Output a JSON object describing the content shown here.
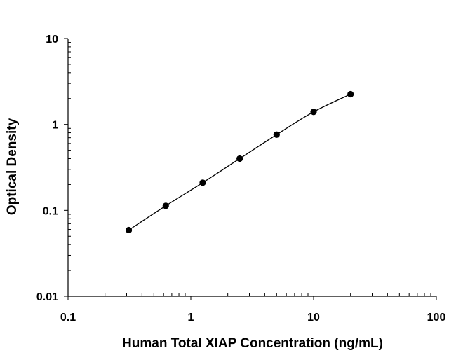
{
  "chart_data": {
    "type": "scatter",
    "title": "",
    "xlabel": "Human Total XIAP Concentration (ng/mL)",
    "ylabel": "Optical Density",
    "xscale": "log",
    "yscale": "log",
    "xlim": [
      0.1,
      100
    ],
    "ylim": [
      0.01,
      10
    ],
    "xticks": [
      "0.1",
      "1",
      "10",
      "100"
    ],
    "yticks": [
      "0.01",
      "0.1",
      "1",
      "10"
    ],
    "grid": false,
    "legend": "none",
    "fit_curve": true,
    "series": [
      {
        "x": [
          0.3125,
          0.625,
          1.25,
          2.5,
          5,
          10,
          20
        ],
        "y": [
          0.059,
          0.113,
          0.21,
          0.4,
          0.76,
          1.4,
          2.25
        ]
      }
    ],
    "colors": {
      "points": "#000000",
      "curve": "#000000"
    }
  }
}
